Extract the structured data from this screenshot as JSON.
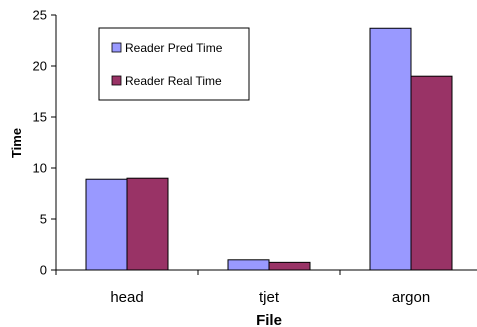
{
  "chart_data": {
    "type": "bar",
    "title": "",
    "xlabel": "File",
    "ylabel": "Time",
    "categories": [
      "head",
      "tjet",
      "argon"
    ],
    "series": [
      {
        "name": "Reader Pred Time",
        "values": [
          8.9,
          1.0,
          23.7
        ],
        "color": "#9999ff"
      },
      {
        "name": "Reader Real Time",
        "values": [
          9.0,
          0.75,
          19.0
        ],
        "color": "#993366"
      }
    ],
    "ylim": [
      0,
      25
    ],
    "yticks": [
      "0",
      "5",
      "10",
      "15",
      "20",
      "25"
    ],
    "grid": false,
    "legend": "top-left"
  }
}
